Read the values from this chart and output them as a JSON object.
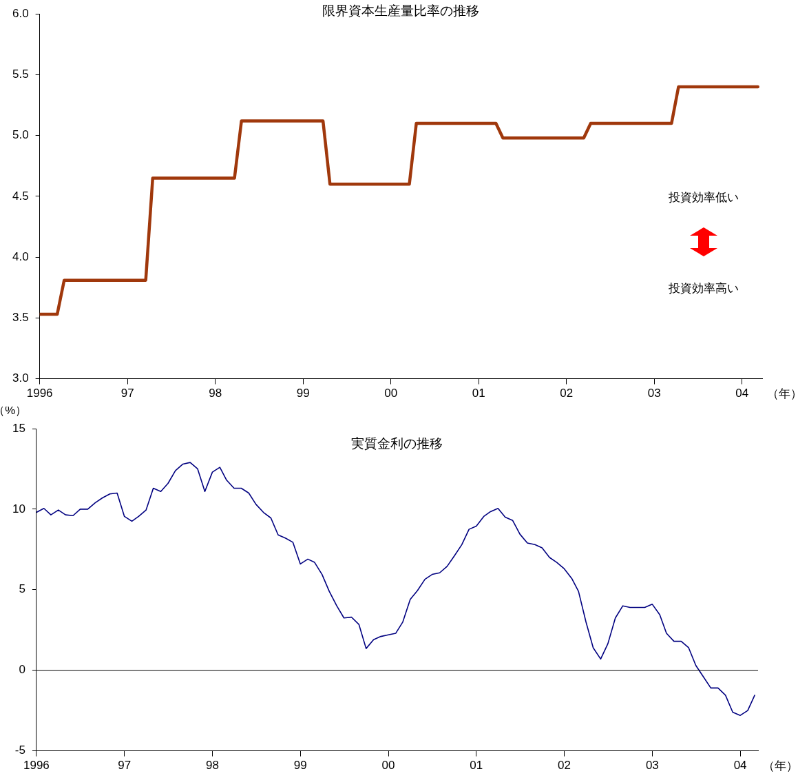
{
  "chart_data": [
    {
      "type": "line",
      "title": "限界資本生産量比率の推移",
      "xlabel": "（年）",
      "x": [
        "1996-01-01",
        "1996-03-14",
        "1996-04-12",
        "1997-03-18",
        "1997-04-16",
        "1998-03-22",
        "1998-04-20",
        "1999-03-25",
        "1999-04-23",
        "2000-03-18",
        "2000-04-16",
        "2001-03-14",
        "2001-04-12",
        "2002-03-14",
        "2002-04-12",
        "2003-03-14",
        "2003-04-12",
        "2004-03-07"
      ],
      "series": [
        {
          "color": "#a0380c",
          "values": [
            3.53,
            3.53,
            3.81,
            3.81,
            4.65,
            4.65,
            5.12,
            5.12,
            4.6,
            4.6,
            5.1,
            5.1,
            4.98,
            4.98,
            5.1,
            5.1,
            5.4,
            5.4
          ]
        }
      ],
      "xlim": [
        "1996-01-01",
        "2004-03-25"
      ],
      "xticks": [
        {
          "value": "1996",
          "label": "1996"
        },
        {
          "value": "1997",
          "label": "97"
        },
        {
          "value": "1998",
          "label": "98"
        },
        {
          "value": "1999",
          "label": "99"
        },
        {
          "value": "2000",
          "label": "00"
        },
        {
          "value": "2001",
          "label": "01"
        },
        {
          "value": "2002",
          "label": "02"
        },
        {
          "value": "2003",
          "label": "03"
        },
        {
          "value": "2004",
          "label": "04"
        }
      ],
      "ylim": [
        3,
        6
      ],
      "yticks": [
        {
          "value": 3,
          "label": "3.0"
        },
        {
          "value": 3.5,
          "label": "3.5"
        },
        {
          "value": 4,
          "label": "4.0"
        },
        {
          "value": 4.5,
          "label": "4.5"
        },
        {
          "value": 5,
          "label": "5.0"
        },
        {
          "value": 5.5,
          "label": "5.5"
        },
        {
          "value": 6,
          "label": "6.0"
        }
      ],
      "annotations": [
        "投資効率低い",
        "投資効率高い"
      ],
      "grid": false,
      "legend": false,
      "marker": "none",
      "line_style": "solid"
    },
    {
      "type": "line",
      "title": "実質金利の推移",
      "xlabel": "（年）",
      "ylabel": "（%）",
      "x": [
        "1996-01",
        "1996-02",
        "1996-03",
        "1996-04",
        "1996-05",
        "1996-06",
        "1996-07",
        "1996-08",
        "1996-09",
        "1996-10",
        "1996-11",
        "1996-12",
        "1997-01",
        "1997-02",
        "1997-03",
        "1997-04",
        "1997-05",
        "1997-06",
        "1997-07",
        "1997-08",
        "1997-09",
        "1997-10",
        "1997-11",
        "1997-12",
        "1998-01",
        "1998-02",
        "1998-03",
        "1998-04",
        "1998-05",
        "1998-06",
        "1998-07",
        "1998-08",
        "1998-09",
        "1998-10",
        "1998-11",
        "1998-12",
        "1999-01",
        "1999-02",
        "1999-03",
        "1999-04",
        "1999-05",
        "1999-06",
        "1999-07",
        "1999-08",
        "1999-09",
        "1999-10",
        "1999-11",
        "1999-12",
        "2000-01",
        "2000-02",
        "2000-03",
        "2000-04",
        "2000-05",
        "2000-06",
        "2000-07",
        "2000-08",
        "2000-09",
        "2000-10",
        "2000-11",
        "2000-12",
        "2001-01",
        "2001-02",
        "2001-03",
        "2001-04",
        "2001-05",
        "2001-06",
        "2001-07",
        "2001-08",
        "2001-09",
        "2001-10",
        "2001-11",
        "2001-12",
        "2002-01",
        "2002-02",
        "2002-03",
        "2002-04",
        "2002-05",
        "2002-06",
        "2002-07",
        "2002-08",
        "2002-09",
        "2002-10",
        "2002-11",
        "2002-12",
        "2003-01",
        "2003-02",
        "2003-03",
        "2003-04",
        "2003-05",
        "2003-06",
        "2003-07",
        "2003-08",
        "2003-09",
        "2003-10",
        "2003-11",
        "2003-12",
        "2004-01",
        "2004-02",
        "2004-03"
      ],
      "series": [
        {
          "color": "#000080",
          "values": [
            9.8,
            10.05,
            9.65,
            9.95,
            9.65,
            9.6,
            10.0,
            10.0,
            10.4,
            10.7,
            10.95,
            11.0,
            9.55,
            9.25,
            9.55,
            9.95,
            11.3,
            11.1,
            11.6,
            12.4,
            12.8,
            12.9,
            12.5,
            11.1,
            12.3,
            12.6,
            11.8,
            11.3,
            11.3,
            11.0,
            10.3,
            9.8,
            9.45,
            8.4,
            8.2,
            7.95,
            6.6,
            6.9,
            6.7,
            5.95,
            4.9,
            4.0,
            3.25,
            3.3,
            2.85,
            1.35,
            1.9,
            2.1,
            2.2,
            2.3,
            3.0,
            4.4,
            4.95,
            5.65,
            5.95,
            6.05,
            6.45,
            7.1,
            7.8,
            8.75,
            8.95,
            9.55,
            9.85,
            10.05,
            9.5,
            9.3,
            8.45,
            7.9,
            7.8,
            7.6,
            7.0,
            6.7,
            6.3,
            5.7,
            4.9,
            3.0,
            1.4,
            0.7,
            1.65,
            3.25,
            4.0,
            3.9,
            3.9,
            3.9,
            4.1,
            3.45,
            2.3,
            1.8,
            1.8,
            1.4,
            0.3,
            -0.4,
            -1.1,
            -1.1,
            -1.55,
            -2.6,
            -2.8,
            -2.5,
            -1.55
          ]
        }
      ],
      "xlim": [
        "1996-01-01",
        "2004-03-15"
      ],
      "xticks": [
        {
          "value": "1996",
          "label": "1996"
        },
        {
          "value": "1997",
          "label": "97"
        },
        {
          "value": "1998",
          "label": "98"
        },
        {
          "value": "1999",
          "label": "99"
        },
        {
          "value": "2000",
          "label": "00"
        },
        {
          "value": "2001",
          "label": "01"
        },
        {
          "value": "2002",
          "label": "02"
        },
        {
          "value": "2003",
          "label": "03"
        },
        {
          "value": "2004",
          "label": "04"
        }
      ],
      "ylim": [
        -5,
        15
      ],
      "yticks": [
        -5,
        0,
        5,
        10,
        15
      ],
      "ref_lines": [
        {
          "axis": "y",
          "value": 0,
          "color": "#000000"
        }
      ],
      "grid": false,
      "legend": false,
      "marker": "none",
      "line_style": "solid"
    }
  ]
}
